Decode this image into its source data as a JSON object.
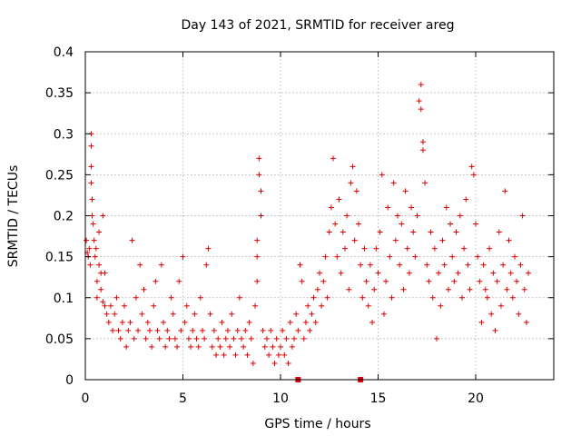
{
  "chart_data": {
    "type": "scatter",
    "title": "Day 143 of 2021, SRMTID for receiver areg",
    "xlabel": "GPS time / hours",
    "ylabel": "SRMTID / TECUs",
    "xlim": [
      0,
      24
    ],
    "ylim": [
      0,
      0.4
    ],
    "grid": true,
    "x_ticks": [
      0,
      5,
      10,
      15,
      20
    ],
    "x_tick_labels": [
      "0",
      "5",
      "10",
      "15",
      "20"
    ],
    "y_ticks": [
      0,
      0.05,
      0.1,
      0.15,
      0.2,
      0.25,
      0.3,
      0.35,
      0.4
    ],
    "y_tick_labels": [
      "0",
      "0.05",
      "0.1",
      "0.15",
      "0.2",
      "0.25",
      "0.3",
      "0.35",
      "0.4"
    ],
    "marker": "+",
    "color": "#e00000",
    "series": [
      {
        "name": "SRMTID",
        "points": [
          [
            0.05,
            0.17
          ],
          [
            0.1,
            0.155
          ],
          [
            0.15,
            0.15
          ],
          [
            0.2,
            0.16
          ],
          [
            0.25,
            0.14
          ],
          [
            0.3,
            0.3
          ],
          [
            0.3,
            0.285
          ],
          [
            0.3,
            0.26
          ],
          [
            0.3,
            0.24
          ],
          [
            0.35,
            0.22
          ],
          [
            0.35,
            0.2
          ],
          [
            0.4,
            0.19
          ],
          [
            0.45,
            0.17
          ],
          [
            0.5,
            0.15
          ],
          [
            0.55,
            0.16
          ],
          [
            0.6,
            0.12
          ],
          [
            0.6,
            0.1
          ],
          [
            0.7,
            0.14
          ],
          [
            0.7,
            0.18
          ],
          [
            0.8,
            0.13
          ],
          [
            0.8,
            0.11
          ],
          [
            0.9,
            0.095
          ],
          [
            0.9,
            0.2
          ],
          [
            1.0,
            0.13
          ],
          [
            1.0,
            0.09
          ],
          [
            1.1,
            0.08
          ],
          [
            1.2,
            0.07
          ],
          [
            1.3,
            0.09
          ],
          [
            1.4,
            0.06
          ],
          [
            1.5,
            0.08
          ],
          [
            1.6,
            0.1
          ],
          [
            1.7,
            0.06
          ],
          [
            1.8,
            0.05
          ],
          [
            1.9,
            0.07
          ],
          [
            2.0,
            0.09
          ],
          [
            2.1,
            0.04
          ],
          [
            2.2,
            0.06
          ],
          [
            2.3,
            0.07
          ],
          [
            2.4,
            0.17
          ],
          [
            2.5,
            0.05
          ],
          [
            2.6,
            0.1
          ],
          [
            2.7,
            0.06
          ],
          [
            2.8,
            0.14
          ],
          [
            2.9,
            0.08
          ],
          [
            3.0,
            0.11
          ],
          [
            3.1,
            0.05
          ],
          [
            3.2,
            0.07
          ],
          [
            3.3,
            0.06
          ],
          [
            3.4,
            0.04
          ],
          [
            3.5,
            0.09
          ],
          [
            3.6,
            0.12
          ],
          [
            3.7,
            0.06
          ],
          [
            3.8,
            0.05
          ],
          [
            3.9,
            0.14
          ],
          [
            4.0,
            0.07
          ],
          [
            4.1,
            0.04
          ],
          [
            4.2,
            0.06
          ],
          [
            4.3,
            0.05
          ],
          [
            4.4,
            0.1
          ],
          [
            4.5,
            0.08
          ],
          [
            4.6,
            0.05
          ],
          [
            4.7,
            0.04
          ],
          [
            4.8,
            0.12
          ],
          [
            4.9,
            0.06
          ],
          [
            5.0,
            0.15
          ],
          [
            5.1,
            0.07
          ],
          [
            5.2,
            0.09
          ],
          [
            5.3,
            0.05
          ],
          [
            5.4,
            0.04
          ],
          [
            5.5,
            0.06
          ],
          [
            5.6,
            0.08
          ],
          [
            5.7,
            0.05
          ],
          [
            5.8,
            0.04
          ],
          [
            5.9,
            0.1
          ],
          [
            6.0,
            0.06
          ],
          [
            6.1,
            0.05
          ],
          [
            6.2,
            0.14
          ],
          [
            6.3,
            0.16
          ],
          [
            6.4,
            0.08
          ],
          [
            6.5,
            0.04
          ],
          [
            6.6,
            0.06
          ],
          [
            6.7,
            0.03
          ],
          [
            6.8,
            0.05
          ],
          [
            6.9,
            0.04
          ],
          [
            7.0,
            0.07
          ],
          [
            7.1,
            0.03
          ],
          [
            7.2,
            0.05
          ],
          [
            7.3,
            0.06
          ],
          [
            7.4,
            0.04
          ],
          [
            7.5,
            0.08
          ],
          [
            7.6,
            0.05
          ],
          [
            7.7,
            0.03
          ],
          [
            7.8,
            0.06
          ],
          [
            7.9,
            0.1
          ],
          [
            8.0,
            0.05
          ],
          [
            8.1,
            0.04
          ],
          [
            8.2,
            0.06
          ],
          [
            8.3,
            0.03
          ],
          [
            8.4,
            0.07
          ],
          [
            8.5,
            0.05
          ],
          [
            8.6,
            0.02
          ],
          [
            8.7,
            0.09
          ],
          [
            8.8,
            0.12
          ],
          [
            8.8,
            0.15
          ],
          [
            8.8,
            0.17
          ],
          [
            8.9,
            0.27
          ],
          [
            8.9,
            0.25
          ],
          [
            9.0,
            0.23
          ],
          [
            9.0,
            0.2
          ],
          [
            9.1,
            0.06
          ],
          [
            9.2,
            0.04
          ],
          [
            9.3,
            0.05
          ],
          [
            9.4,
            0.03
          ],
          [
            9.5,
            0.06
          ],
          [
            9.6,
            0.04
          ],
          [
            9.7,
            0.02
          ],
          [
            9.8,
            0.05
          ],
          [
            9.9,
            0.03
          ],
          [
            10.0,
            0.04
          ],
          [
            10.1,
            0.06
          ],
          [
            10.2,
            0.03
          ],
          [
            10.3,
            0.05
          ],
          [
            10.4,
            0.02
          ],
          [
            10.5,
            0.07
          ],
          [
            10.6,
            0.04
          ],
          [
            10.7,
            0.05
          ],
          [
            10.8,
            0.08
          ],
          [
            10.9,
            0.06
          ],
          [
            11.0,
            0.14
          ],
          [
            11.1,
            0.12
          ],
          [
            11.2,
            0.05
          ],
          [
            11.3,
            0.07
          ],
          [
            11.4,
            0.09
          ],
          [
            11.5,
            0.06
          ],
          [
            11.6,
            0.08
          ],
          [
            11.7,
            0.1
          ],
          [
            11.8,
            0.07
          ],
          [
            11.9,
            0.11
          ],
          [
            12.0,
            0.13
          ],
          [
            12.1,
            0.09
          ],
          [
            12.2,
            0.12
          ],
          [
            12.3,
            0.15
          ],
          [
            12.4,
            0.1
          ],
          [
            12.5,
            0.18
          ],
          [
            12.6,
            0.21
          ],
          [
            12.7,
            0.27
          ],
          [
            12.8,
            0.19
          ],
          [
            12.9,
            0.15
          ],
          [
            13.0,
            0.22
          ],
          [
            13.1,
            0.13
          ],
          [
            13.2,
            0.18
          ],
          [
            13.3,
            0.16
          ],
          [
            13.4,
            0.2
          ],
          [
            13.5,
            0.11
          ],
          [
            13.6,
            0.24
          ],
          [
            13.7,
            0.26
          ],
          [
            13.8,
            0.17
          ],
          [
            13.9,
            0.23
          ],
          [
            14.0,
            0.19
          ],
          [
            14.1,
            0.14
          ],
          [
            14.2,
            0.1
          ],
          [
            14.3,
            0.16
          ],
          [
            14.4,
            0.12
          ],
          [
            14.5,
            0.09
          ],
          [
            14.6,
            0.14
          ],
          [
            14.7,
            0.07
          ],
          [
            14.8,
            0.11
          ],
          [
            14.9,
            0.16
          ],
          [
            15.0,
            0.13
          ],
          [
            15.1,
            0.18
          ],
          [
            15.2,
            0.25
          ],
          [
            15.3,
            0.08
          ],
          [
            15.4,
            0.12
          ],
          [
            15.5,
            0.21
          ],
          [
            15.6,
            0.15
          ],
          [
            15.7,
            0.1
          ],
          [
            15.8,
            0.24
          ],
          [
            15.9,
            0.17
          ],
          [
            16.0,
            0.2
          ],
          [
            16.1,
            0.14
          ],
          [
            16.2,
            0.19
          ],
          [
            16.3,
            0.11
          ],
          [
            16.4,
            0.23
          ],
          [
            16.5,
            0.16
          ],
          [
            16.6,
            0.13
          ],
          [
            16.7,
            0.21
          ],
          [
            16.8,
            0.18
          ],
          [
            16.9,
            0.15
          ],
          [
            17.0,
            0.2
          ],
          [
            17.1,
            0.34
          ],
          [
            17.2,
            0.33
          ],
          [
            17.2,
            0.36
          ],
          [
            17.3,
            0.29
          ],
          [
            17.3,
            0.28
          ],
          [
            17.4,
            0.24
          ],
          [
            17.5,
            0.14
          ],
          [
            17.6,
            0.12
          ],
          [
            17.7,
            0.18
          ],
          [
            17.8,
            0.1
          ],
          [
            17.9,
            0.16
          ],
          [
            18.0,
            0.05
          ],
          [
            18.1,
            0.13
          ],
          [
            18.2,
            0.09
          ],
          [
            18.3,
            0.17
          ],
          [
            18.4,
            0.14
          ],
          [
            18.5,
            0.21
          ],
          [
            18.6,
            0.11
          ],
          [
            18.7,
            0.19
          ],
          [
            18.8,
            0.15
          ],
          [
            18.9,
            0.12
          ],
          [
            19.0,
            0.18
          ],
          [
            19.1,
            0.13
          ],
          [
            19.2,
            0.2
          ],
          [
            19.3,
            0.1
          ],
          [
            19.4,
            0.16
          ],
          [
            19.5,
            0.22
          ],
          [
            19.6,
            0.14
          ],
          [
            19.7,
            0.11
          ],
          [
            19.8,
            0.26
          ],
          [
            19.9,
            0.25
          ],
          [
            20.0,
            0.19
          ],
          [
            20.1,
            0.15
          ],
          [
            20.2,
            0.12
          ],
          [
            20.3,
            0.07
          ],
          [
            20.4,
            0.14
          ],
          [
            20.5,
            0.11
          ],
          [
            20.6,
            0.1
          ],
          [
            20.7,
            0.16
          ],
          [
            20.8,
            0.08
          ],
          [
            20.9,
            0.13
          ],
          [
            21.0,
            0.06
          ],
          [
            21.1,
            0.12
          ],
          [
            21.2,
            0.18
          ],
          [
            21.3,
            0.09
          ],
          [
            21.4,
            0.14
          ],
          [
            21.5,
            0.23
          ],
          [
            21.6,
            0.11
          ],
          [
            21.7,
            0.17
          ],
          [
            21.8,
            0.13
          ],
          [
            21.9,
            0.1
          ],
          [
            22.0,
            0.15
          ],
          [
            22.1,
            0.12
          ],
          [
            22.2,
            0.08
          ],
          [
            22.3,
            0.14
          ],
          [
            22.4,
            0.2
          ],
          [
            22.5,
            0.11
          ],
          [
            22.6,
            0.07
          ],
          [
            22.7,
            0.13
          ]
        ]
      }
    ],
    "baseline_markers_x": [
      10.9,
      14.1
    ]
  }
}
